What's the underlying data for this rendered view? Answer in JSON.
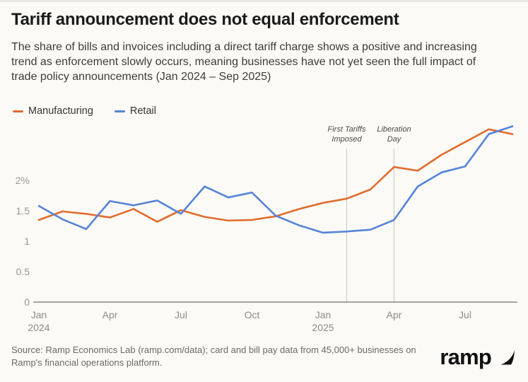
{
  "header": {
    "title": "Tariff announcement does not equal enforcement",
    "subtitle": "The share of bills and invoices including a direct tariff charge shows a positive and increasing trend as enforcement slowly occurs, meaning businesses have not yet seen the full impact of trade policy announcements (Jan 2024 – Sep 2025)"
  },
  "legend": {
    "items": [
      {
        "label": "Manufacturing",
        "color": "#e06c2e"
      },
      {
        "label": "Retail",
        "color": "#5584d9"
      }
    ]
  },
  "chart_data": {
    "type": "line",
    "x": [
      "Jan 2024",
      "Feb 2024",
      "Mar 2024",
      "Apr 2024",
      "May 2024",
      "Jun 2024",
      "Jul 2024",
      "Aug 2024",
      "Sep 2024",
      "Oct 2024",
      "Nov 2024",
      "Dec 2024",
      "Jan 2025",
      "Feb 2025",
      "Mar 2025",
      "Apr 2025",
      "May 2025",
      "Jun 2025",
      "Jul 2025",
      "Aug 2025",
      "Sep 2025"
    ],
    "series": [
      {
        "name": "Manufacturing",
        "color": "#e06c2e",
        "values": [
          1.35,
          1.49,
          1.45,
          1.39,
          1.53,
          1.32,
          1.51,
          1.4,
          1.34,
          1.35,
          1.41,
          1.53,
          1.63,
          1.7,
          1.85,
          2.22,
          2.16,
          2.42,
          2.63,
          2.84,
          2.76
        ]
      },
      {
        "name": "Retail",
        "color": "#5584d9",
        "values": [
          1.58,
          1.36,
          1.2,
          1.66,
          1.59,
          1.67,
          1.45,
          1.9,
          1.72,
          1.8,
          1.42,
          1.26,
          1.14,
          1.16,
          1.19,
          1.35,
          1.9,
          2.13,
          2.23,
          2.76,
          2.89
        ]
      }
    ],
    "ylabel": "",
    "xlabel": "",
    "ylim": [
      0,
      3
    ],
    "yticks": [
      {
        "value": 0,
        "label": "0"
      },
      {
        "value": 0.5,
        "label": "0.5"
      },
      {
        "value": 1,
        "label": "1"
      },
      {
        "value": 1.5,
        "label": "1.5"
      },
      {
        "value": 2,
        "label": "2%"
      }
    ],
    "xticks": [
      {
        "index": 0,
        "label": "Jan",
        "sublabel": "2024"
      },
      {
        "index": 3,
        "label": "Apr",
        "sublabel": ""
      },
      {
        "index": 6,
        "label": "Jul",
        "sublabel": ""
      },
      {
        "index": 9,
        "label": "Oct",
        "sublabel": ""
      },
      {
        "index": 12,
        "label": "Jan",
        "sublabel": "2025"
      },
      {
        "index": 15,
        "label": "Apr",
        "sublabel": ""
      },
      {
        "index": 18,
        "label": "Jul",
        "sublabel": ""
      }
    ],
    "annotations": [
      {
        "index": 13,
        "lines": [
          "First Tariffs",
          "Imposed"
        ]
      },
      {
        "index": 15,
        "lines": [
          "Liberation",
          "Day"
        ]
      }
    ],
    "grid": false,
    "legend_position": "top-left"
  },
  "footer": {
    "source": "Source: Ramp Economics Lab (ramp.com/data); card and bill pay data from 45,000+ businesses on Ramp's financial operations platform.",
    "brand": "ramp"
  },
  "colors": {
    "background": "#fbfaf6",
    "axis_line": "#8a8780",
    "annotation_line": "#d2cfc9",
    "tick_text": "#9b978f"
  }
}
